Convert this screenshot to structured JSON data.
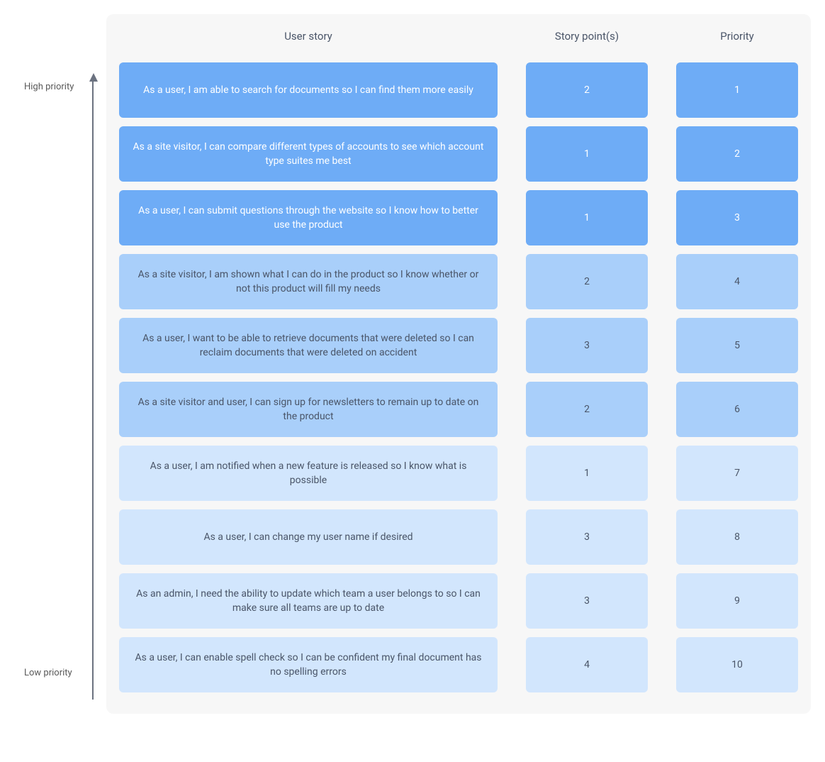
{
  "type": "priority-table",
  "axis": {
    "top_label": "High priority",
    "bottom_label": "Low priority",
    "arrow_color": "#6b7280"
  },
  "panel": {
    "background_color": "#f7f7f7",
    "border_radius": 10
  },
  "columns": [
    {
      "key": "story",
      "label": "User story"
    },
    {
      "key": "points",
      "label": "Story point(s)"
    },
    {
      "key": "priority",
      "label": "Priority"
    }
  ],
  "tiers": {
    "1": {
      "background": "#6eacf6",
      "text_color": "#ffffff"
    },
    "2": {
      "background": "#a9cffa",
      "text_color": "#4a5568"
    },
    "3": {
      "background": "#d2e6fd",
      "text_color": "#4a5568"
    }
  },
  "rows": [
    {
      "story": "As a user, I am able to search for documents so I can find them more easily",
      "points": 2,
      "priority": 1,
      "tier": 1
    },
    {
      "story": "As a site visitor, I can compare different types of accounts to see which account type suites me best",
      "points": 1,
      "priority": 2,
      "tier": 1
    },
    {
      "story": "As a user, I can submit questions through the website so I know how to better use the product",
      "points": 1,
      "priority": 3,
      "tier": 1
    },
    {
      "story": "As a site visitor, I am shown what I can do in the product so I know whether or not this product will fill my needs",
      "points": 2,
      "priority": 4,
      "tier": 2
    },
    {
      "story": "As a user, I want to be able to retrieve documents that were deleted so I can reclaim documents that were deleted on accident",
      "points": 3,
      "priority": 5,
      "tier": 2
    },
    {
      "story": "As a site visitor and user, I can sign up for newsletters to remain up to date on the product",
      "points": 2,
      "priority": 6,
      "tier": 2
    },
    {
      "story": "As a user, I am notified when a new feature is released so I know what is possible",
      "points": 1,
      "priority": 7,
      "tier": 3
    },
    {
      "story": "As a user, I can change my user name if desired",
      "points": 3,
      "priority": 8,
      "tier": 3
    },
    {
      "story": "As an admin, I need the ability to update which team a user belongs to so I can make sure all teams are up to date",
      "points": 3,
      "priority": 9,
      "tier": 3
    },
    {
      "story": "As a user, I can enable spell check so I can be confident my final document has no spelling errors",
      "points": 4,
      "priority": 10,
      "tier": 3
    }
  ],
  "layout": {
    "grid_columns": "1fr 172px 172px",
    "row_gap": 12,
    "col_gap": 40,
    "cell_min_height": 78,
    "font_family": "system-ui",
    "body_fontsize": 14,
    "header_fontsize": 15
  }
}
